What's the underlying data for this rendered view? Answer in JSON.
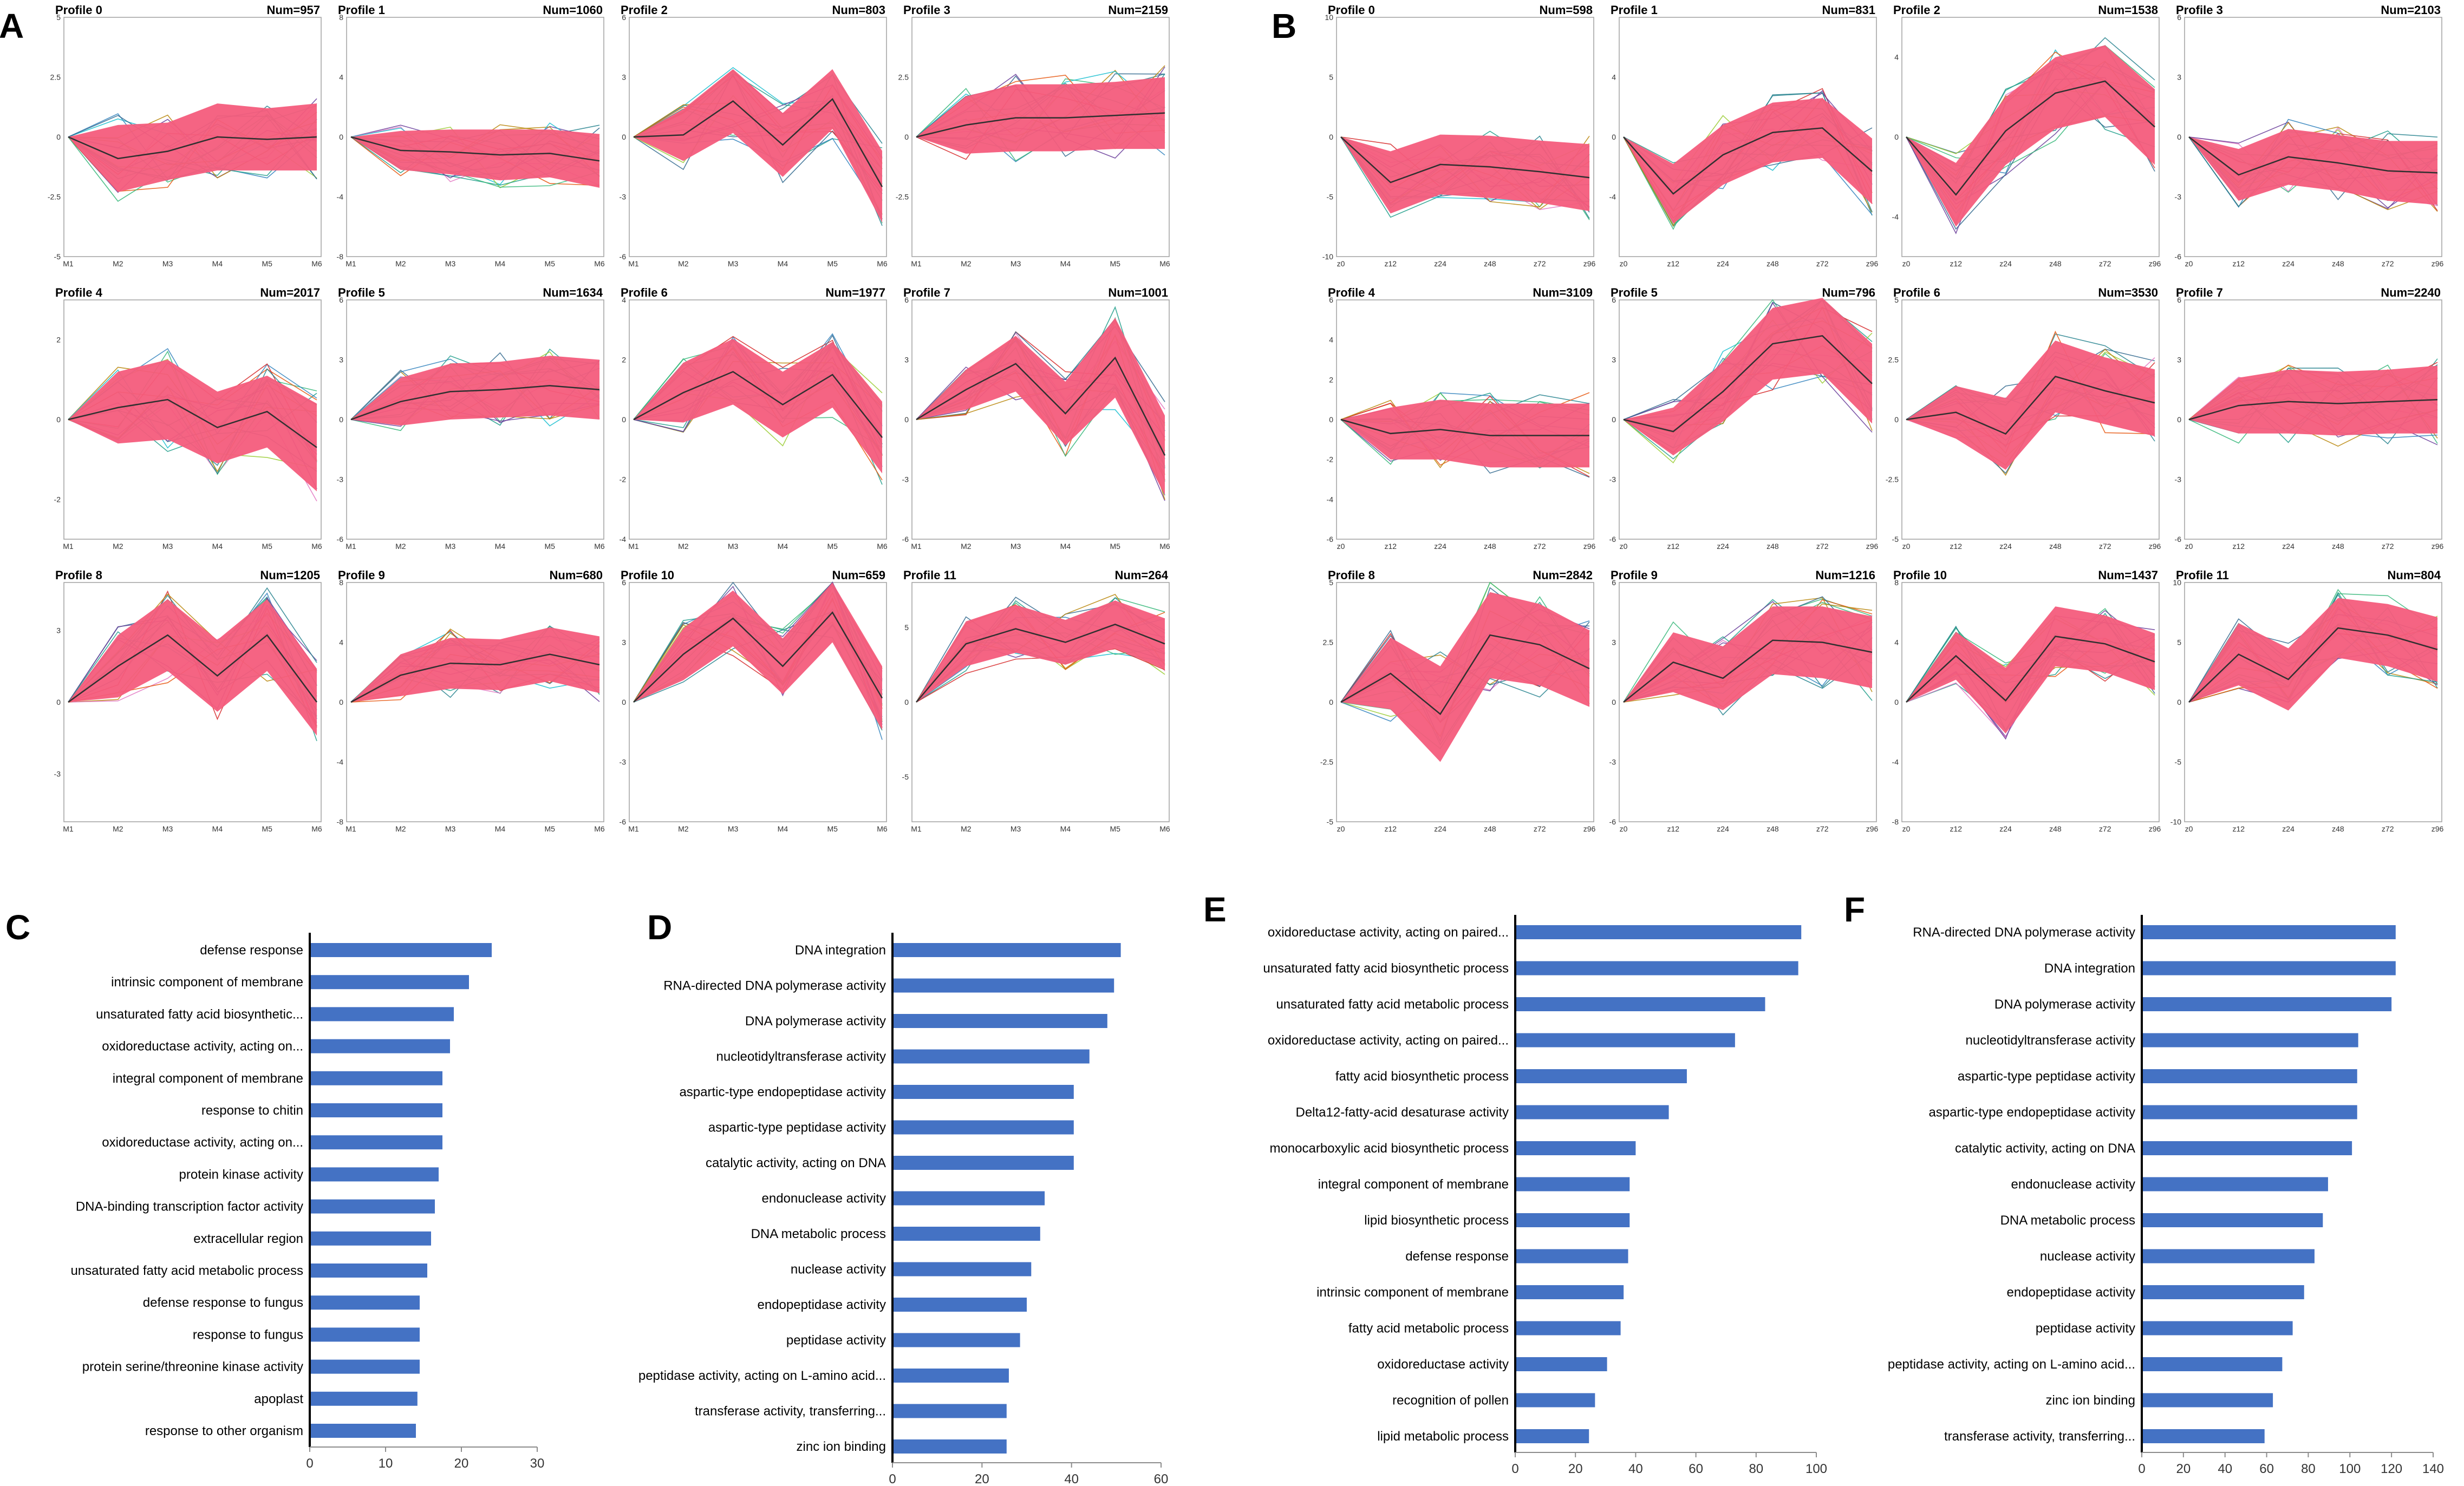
{
  "colors": {
    "bar": "#4472C4",
    "band": "#F45C7C",
    "mean_line": "#303030",
    "axis": "#000000",
    "frame": "#A0A0A0",
    "trace_palette": [
      "#1f9e89",
      "#35b779",
      "#31688e",
      "#26828e",
      "#6a3d9a",
      "#b8860b",
      "#e377c2",
      "#17becf",
      "#9acd32",
      "#e6550d",
      "#3182bd",
      "#d62728"
    ]
  },
  "panels": {
    "A": {
      "label": "A",
      "time_points": [
        "M1",
        "M2",
        "M3",
        "M4",
        "M5",
        "M6"
      ],
      "profiles": [
        {
          "title": "Profile 0",
          "num": "Num=957",
          "ylim": [
            -5,
            5
          ],
          "ticks": [
            -5.0,
            -2.5,
            0.0,
            2.5,
            5.0
          ],
          "mean": [
            0,
            -0.9,
            -0.6,
            0,
            -0.1,
            0
          ],
          "spread": [
            0,
            1.4,
            1.2,
            1.4,
            1.3,
            1.4
          ]
        },
        {
          "title": "Profile 1",
          "num": "Num=1060",
          "ylim": [
            -8,
            8
          ],
          "ticks": [
            -8,
            -4,
            0,
            4,
            8
          ],
          "mean": [
            0,
            -0.9,
            -1.0,
            -1.2,
            -1.1,
            -1.6
          ],
          "spread": [
            0,
            1.3,
            1.5,
            1.7,
            1.6,
            1.8
          ]
        },
        {
          "title": "Profile 2",
          "num": "Num=803",
          "ylim": [
            -6,
            6
          ],
          "ticks": [
            -6,
            -3,
            0,
            3,
            6
          ],
          "mean": [
            0,
            0.1,
            1.8,
            -0.4,
            1.9,
            -2.5
          ],
          "spread": [
            0,
            1.3,
            1.6,
            1.6,
            1.5,
            1.8
          ]
        },
        {
          "title": "Profile 3",
          "num": "Num=2159",
          "ylim": [
            -5,
            5
          ],
          "ticks": [
            -2.5,
            0.0,
            2.5
          ],
          "mean": [
            0,
            0.5,
            0.8,
            0.8,
            0.9,
            1.0
          ],
          "spread": [
            0,
            1.2,
            1.4,
            1.4,
            1.4,
            1.5
          ]
        },
        {
          "title": "Profile 4",
          "num": "Num=2017",
          "ylim": [
            -3,
            3
          ],
          "ticks": [
            -2,
            0,
            2
          ],
          "mean": [
            0,
            0.3,
            0.5,
            -0.2,
            0.2,
            -0.7
          ],
          "spread": [
            0,
            0.9,
            1.0,
            0.9,
            0.9,
            1.1
          ]
        },
        {
          "title": "Profile 5",
          "num": "Num=1634",
          "ylim": [
            -6,
            6
          ],
          "ticks": [
            -6,
            -3,
            0,
            3,
            6
          ],
          "mean": [
            0,
            0.9,
            1.4,
            1.5,
            1.7,
            1.5
          ],
          "spread": [
            0,
            1.2,
            1.4,
            1.4,
            1.5,
            1.5
          ]
        },
        {
          "title": "Profile 6",
          "num": "Num=1977",
          "ylim": [
            -4,
            4
          ],
          "ticks": [
            -4,
            -2,
            0,
            2,
            4
          ],
          "mean": [
            0,
            0.9,
            1.6,
            0.5,
            1.5,
            -0.6
          ],
          "spread": [
            0,
            1.0,
            1.1,
            1.1,
            1.1,
            1.2
          ]
        },
        {
          "title": "Profile 7",
          "num": "Num=1001",
          "ylim": [
            -6,
            6
          ],
          "ticks": [
            -6,
            -3,
            0,
            3,
            6
          ],
          "mean": [
            0,
            1.5,
            2.8,
            0.3,
            3.1,
            -1.8
          ],
          "spread": [
            0,
            1.0,
            1.4,
            1.6,
            2.0,
            2.0
          ]
        },
        {
          "title": "Profile 8",
          "num": "Num=1205",
          "ylim": [
            -5,
            5
          ],
          "ticks": [
            -3,
            0,
            3
          ],
          "mean": [
            0,
            1.5,
            2.8,
            1.1,
            2.8,
            0
          ],
          "spread": [
            0,
            1.3,
            1.5,
            1.5,
            1.5,
            1.4
          ]
        },
        {
          "title": "Profile 9",
          "num": "Num=680",
          "ylim": [
            -8,
            8
          ],
          "ticks": [
            -8,
            -4,
            0,
            4,
            8
          ],
          "mean": [
            0,
            1.8,
            2.6,
            2.5,
            3.2,
            2.5
          ],
          "spread": [
            0,
            1.4,
            1.7,
            1.7,
            1.8,
            1.9
          ]
        },
        {
          "title": "Profile 10",
          "num": "Num=659",
          "ylim": [
            -6,
            6
          ],
          "ticks": [
            -6,
            -3,
            0,
            3,
            6
          ],
          "mean": [
            0,
            2.4,
            4.2,
            1.8,
            4.5,
            0.2
          ],
          "spread": [
            0,
            1.3,
            1.4,
            1.4,
            1.5,
            1.6
          ]
        },
        {
          "title": "Profile 11",
          "num": "Num=264",
          "ylim": [
            -8,
            8
          ],
          "ticks": [
            -5,
            0,
            5
          ],
          "mean": [
            0,
            3.9,
            4.9,
            4.0,
            5.2,
            3.9
          ],
          "spread": [
            0,
            1.5,
            1.6,
            1.5,
            1.6,
            1.7
          ]
        }
      ]
    },
    "B": {
      "label": "B",
      "time_points": [
        "z0",
        "z12",
        "z24",
        "z48",
        "z72",
        "z96"
      ],
      "profiles": [
        {
          "title": "Profile 0",
          "num": "Num=598",
          "ylim": [
            -10,
            10
          ],
          "ticks": [
            -10,
            -5,
            0,
            5,
            10
          ],
          "mean": [
            0,
            -3.8,
            -2.3,
            -2.5,
            -2.9,
            -3.4
          ],
          "spread": [
            0,
            2.6,
            2.5,
            2.6,
            2.6,
            2.8
          ]
        },
        {
          "title": "Profile 1",
          "num": "Num=831",
          "ylim": [
            -8,
            8
          ],
          "ticks": [
            -4,
            0,
            4
          ],
          "mean": [
            0,
            -3.8,
            -1.2,
            0.3,
            0.6,
            -2.3
          ],
          "spread": [
            0,
            2.0,
            2.0,
            2.0,
            2.0,
            2.2
          ]
        },
        {
          "title": "Profile 2",
          "num": "Num=1538",
          "ylim": [
            -6,
            6
          ],
          "ticks": [
            -4,
            0,
            4
          ],
          "mean": [
            0,
            -2.9,
            0.3,
            2.2,
            2.8,
            0.5
          ],
          "spread": [
            0,
            1.6,
            1.7,
            1.8,
            1.8,
            1.9
          ]
        },
        {
          "title": "Profile 3",
          "num": "Num=2103",
          "ylim": [
            -6,
            6
          ],
          "ticks": [
            -6,
            -3,
            0,
            3,
            6
          ],
          "mean": [
            0,
            -1.9,
            -1.0,
            -1.3,
            -1.7,
            -1.8
          ],
          "spread": [
            0,
            1.3,
            1.4,
            1.4,
            1.5,
            1.6
          ]
        },
        {
          "title": "Profile 4",
          "num": "Num=3109",
          "ylim": [
            -6,
            6
          ],
          "ticks": [
            -6,
            -4,
            -2,
            0,
            2,
            4,
            6
          ],
          "mean": [
            0,
            -0.7,
            -0.5,
            -0.8,
            -0.8,
            -0.8
          ],
          "spread": [
            0,
            1.3,
            1.5,
            1.6,
            1.6,
            1.6
          ]
        },
        {
          "title": "Profile 5",
          "num": "Num=796",
          "ylim": [
            -6,
            6
          ],
          "ticks": [
            -6,
            -3,
            0,
            3,
            6
          ],
          "mean": [
            0,
            -0.6,
            1.4,
            3.8,
            4.2,
            1.8
          ],
          "spread": [
            0,
            1.2,
            1.5,
            1.8,
            1.9,
            2.0
          ]
        },
        {
          "title": "Profile 6",
          "num": "Num=3530",
          "ylim": [
            -5,
            5
          ],
          "ticks": [
            -5.0,
            -2.5,
            0.0,
            2.5,
            5.0
          ],
          "mean": [
            0,
            0.3,
            -0.6,
            1.8,
            1.2,
            0.7
          ],
          "spread": [
            0,
            1.1,
            1.5,
            1.5,
            1.4,
            1.4
          ]
        },
        {
          "title": "Profile 7",
          "num": "Num=2240",
          "ylim": [
            -6,
            6
          ],
          "ticks": [
            -6,
            -3,
            0,
            3,
            6
          ],
          "mean": [
            0,
            0.7,
            0.9,
            0.8,
            0.9,
            1.0
          ],
          "spread": [
            0,
            1.4,
            1.6,
            1.6,
            1.6,
            1.7
          ]
        },
        {
          "title": "Profile 8",
          "num": "Num=2842",
          "ylim": [
            -5,
            5
          ],
          "ticks": [
            -5.0,
            -2.5,
            0.0,
            2.5,
            5.0
          ],
          "mean": [
            0,
            1.2,
            -0.5,
            2.8,
            2.4,
            1.4
          ],
          "spread": [
            0,
            1.5,
            2.0,
            1.8,
            1.7,
            1.6
          ]
        },
        {
          "title": "Profile 9",
          "num": "Num=1216",
          "ylim": [
            -6,
            6
          ],
          "ticks": [
            -6,
            -3,
            0,
            3,
            6
          ],
          "mean": [
            0,
            2.0,
            1.2,
            3.1,
            3.0,
            2.5
          ],
          "spread": [
            0,
            1.5,
            1.6,
            1.7,
            1.8,
            1.8
          ]
        },
        {
          "title": "Profile 10",
          "num": "Num=1437",
          "ylim": [
            -8,
            8
          ],
          "ticks": [
            -8,
            -4,
            0,
            4,
            8
          ],
          "mean": [
            0,
            3.1,
            0.1,
            4.4,
            3.9,
            2.7
          ],
          "spread": [
            0,
            1.6,
            2.2,
            2.0,
            1.9,
            1.9
          ]
        },
        {
          "title": "Profile 11",
          "num": "Num=804",
          "ylim": [
            -10,
            10
          ],
          "ticks": [
            -10,
            -5,
            0,
            5,
            10
          ],
          "mean": [
            0,
            4.0,
            1.9,
            6.2,
            5.6,
            4.4
          ],
          "spread": [
            0,
            2.6,
            2.6,
            2.5,
            2.6,
            2.7
          ]
        }
      ]
    }
  },
  "chart_data": [
    {
      "type": "bar",
      "orientation": "horizontal",
      "label": "C",
      "categories": [
        "defense response",
        "intrinsic component of membrane",
        "unsaturated fatty acid biosynthetic...",
        "oxidoreductase activity, acting on...",
        "integral component of membrane",
        "response to chitin",
        "oxidoreductase activity, acting on...",
        "protein kinase activity",
        "DNA-binding transcription factor activity",
        "extracellular region",
        "unsaturated fatty acid metabolic process",
        "defense response to fungus",
        "response to fungus",
        "protein serine/threonine kinase activity",
        "apoplast",
        "response to other organism"
      ],
      "values": [
        24,
        21,
        19,
        18.5,
        17.5,
        17.5,
        17.5,
        17,
        16.5,
        16,
        15.5,
        14.5,
        14.5,
        14.5,
        14.2,
        14
      ],
      "xlim": [
        0,
        30
      ],
      "xticks": [
        0,
        10,
        20,
        30
      ]
    },
    {
      "type": "bar",
      "orientation": "horizontal",
      "label": "D",
      "categories": [
        "DNA integration",
        "RNA-directed DNA polymerase activity",
        "DNA polymerase activity",
        "nucleotidyltransferase activity",
        "aspartic-type endopeptidase activity",
        "aspartic-type peptidase activity",
        "catalytic activity, acting on DNA",
        "endonuclease activity",
        "DNA metabolic process",
        "nuclease activity",
        "endopeptidase activity",
        "peptidase activity",
        "peptidase activity, acting on L-amino acid...",
        "transferase activity, transferring...",
        "zinc ion binding"
      ],
      "values": [
        51,
        49.5,
        48,
        44,
        40.5,
        40.5,
        40.5,
        34,
        33,
        31,
        30,
        28.5,
        26,
        25.5,
        25.5
      ],
      "xlim": [
        0,
        60
      ],
      "xticks": [
        0,
        20,
        40,
        60
      ]
    },
    {
      "type": "bar",
      "orientation": "horizontal",
      "label": "E",
      "categories": [
        "oxidoreductase activity, acting on paired...",
        "unsaturated fatty acid biosynthetic process",
        "unsaturated fatty acid metabolic process",
        "oxidoreductase activity, acting on paired...",
        "fatty acid biosynthetic process",
        "Delta12-fatty-acid desaturase activity",
        "monocarboxylic acid biosynthetic process",
        "integral component of membrane",
        "lipid biosynthetic process",
        "defense response",
        "intrinsic component of membrane",
        "fatty acid metabolic process",
        "oxidoreductase activity",
        "recognition of pollen",
        "lipid metabolic process"
      ],
      "values": [
        95,
        94,
        83,
        73,
        57,
        51,
        40,
        38,
        38,
        37.5,
        36,
        35,
        30.5,
        26.5,
        24.5
      ],
      "xlim": [
        0,
        100
      ],
      "xticks": [
        0,
        20,
        40,
        60,
        80,
        100
      ]
    },
    {
      "type": "bar",
      "orientation": "horizontal",
      "label": "F",
      "categories": [
        "RNA-directed DNA polymerase activity",
        "DNA integration",
        "DNA polymerase activity",
        "nucleotidyltransferase activity",
        "aspartic-type peptidase activity",
        "aspartic-type endopeptidase activity",
        "catalytic activity, acting on DNA",
        "endonuclease activity",
        "DNA metabolic process",
        "nuclease activity",
        "endopeptidase activity",
        "peptidase activity",
        "peptidase activity, acting on L-amino acid...",
        "zinc ion binding",
        "transferase activity, transferring..."
      ],
      "values": [
        122,
        122,
        120,
        104,
        103.5,
        103.5,
        101,
        89.5,
        87,
        83,
        78,
        72.5,
        67.5,
        63,
        59
      ],
      "xlim": [
        0,
        140
      ],
      "xticks": [
        0,
        20,
        40,
        60,
        80,
        100,
        120,
        140
      ]
    }
  ]
}
